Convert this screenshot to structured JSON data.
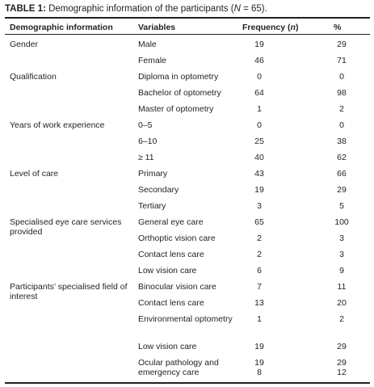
{
  "caption": {
    "label": "TABLE 1:",
    "text_before": " Demographic information of the participants (",
    "n_symbol": "N",
    "text_after": " = 65)."
  },
  "headers": {
    "demographic": "Demographic information",
    "variables": "Variables",
    "frequency_text": "Frequency (",
    "frequency_symbol": "n",
    "frequency_close": ")",
    "percent": "%"
  },
  "rows": [
    {
      "category": "Gender",
      "variable": "Male",
      "frequency": "19",
      "percent": "29"
    },
    {
      "category": "",
      "variable": "Female",
      "frequency": "46",
      "percent": "71"
    },
    {
      "category": "Qualification",
      "variable": "Diploma in optometry",
      "frequency": "0",
      "percent": "0"
    },
    {
      "category": "",
      "variable": "Bachelor of optometry",
      "frequency": "64",
      "percent": "98"
    },
    {
      "category": "",
      "variable": "Master of optometry",
      "frequency": "1",
      "percent": "2"
    },
    {
      "category": "Years of work experience",
      "variable": "0–5",
      "frequency": "0",
      "percent": "0"
    },
    {
      "category": "",
      "variable": "6–10",
      "frequency": "25",
      "percent": "38"
    },
    {
      "category": "",
      "variable": "≥ 11",
      "frequency": "40",
      "percent": "62"
    },
    {
      "category": "Level of care",
      "variable": "Primary",
      "frequency": "43",
      "percent": "66"
    },
    {
      "category": "",
      "variable": "Secondary",
      "frequency": "19",
      "percent": "29"
    },
    {
      "category": "",
      "variable": "Tertiary",
      "frequency": "3",
      "percent": "5"
    },
    {
      "category": "Specialised eye care services provided",
      "variable": "General eye care",
      "frequency": "65",
      "percent": "100"
    },
    {
      "category": "",
      "variable": "Orthoptic vision care",
      "frequency": "2",
      "percent": "3"
    },
    {
      "category": "",
      "variable": "Contact lens care",
      "frequency": "2",
      "percent": "3"
    },
    {
      "category": "",
      "variable": "Low vision care",
      "frequency": "6",
      "percent": "9"
    },
    {
      "category": "Participants’ specialised field of interest",
      "variable": "Binocular vision care",
      "frequency": "7",
      "percent": "11"
    },
    {
      "category": "",
      "variable": "Contact lens care",
      "frequency": "13",
      "percent": "20"
    },
    {
      "category": "",
      "variable": "Environmental optometry",
      "frequency": "1",
      "percent": "2"
    },
    {
      "category": "",
      "variable": "Low vision care",
      "frequency": "19",
      "percent": "29"
    },
    {
      "category": "",
      "variable": "Ocular pathology and emergency care",
      "frequency": [
        "19",
        "8"
      ],
      "percent": [
        "29",
        "12"
      ]
    }
  ]
}
